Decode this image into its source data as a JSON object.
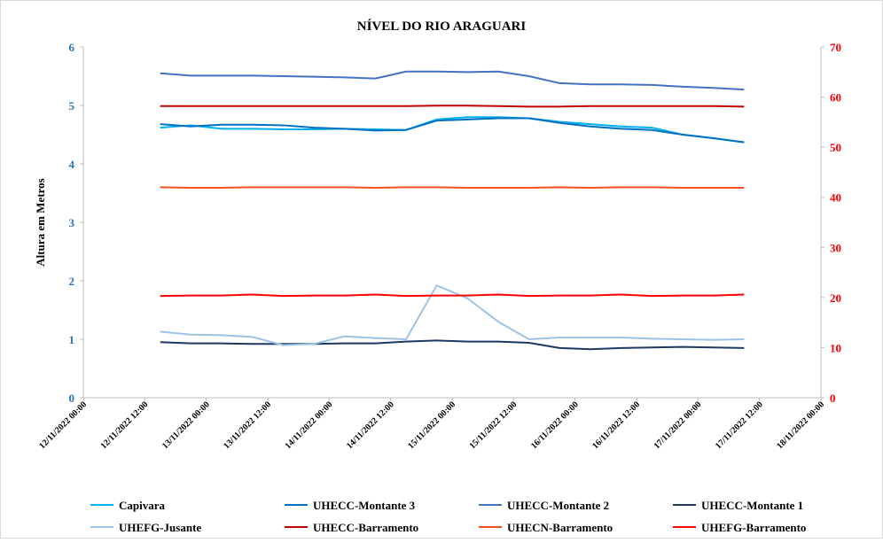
{
  "chart_data": {
    "type": "line",
    "title": "NÍVEL DO RIO ARAGUARI",
    "y_label": "Altura  em Metros",
    "x": [
      "12/11/2022 15:00",
      "12/11/2022 21:00",
      "13/11/2022 03:00",
      "13/11/2022 09:00",
      "13/11/2022 15:00",
      "13/11/2022 21:00",
      "14/11/2022 03:00",
      "14/11/2022 09:00",
      "14/11/2022 15:00",
      "14/11/2022 21:00",
      "15/11/2022 03:00",
      "15/11/2022 09:00",
      "15/11/2022 15:00",
      "15/11/2022 21:00",
      "16/11/2022 03:00",
      "16/11/2022 09:00",
      "16/11/2022 15:00",
      "16/11/2022 21:00",
      "17/11/2022 03:00",
      "17/11/2022 09:00"
    ],
    "xlim": [
      "12/11/2022 00:00",
      "18/11/2022 00:00"
    ],
    "xticks": [
      "12/11/2022 00:00",
      "12/11/2022 12:00",
      "13/11/2022 00:00",
      "13/11/2022 12:00",
      "14/11/2022 00:00",
      "14/11/2022 12:00",
      "15/11/2022 00:00",
      "15/11/2022 12:00",
      "16/11/2022 00:00",
      "16/11/2022 12:00",
      "17/11/2022 00:00",
      "17/11/2022 12:00",
      "18/11/2022 00:00"
    ],
    "ylim": [
      0,
      6
    ],
    "yticks": [
      0,
      1,
      2,
      3,
      4,
      5,
      6
    ],
    "y2lim": [
      0,
      70
    ],
    "y2ticks": [
      0,
      10,
      20,
      30,
      40,
      50,
      60,
      70
    ],
    "series": [
      {
        "name": "Capivara",
        "color": "#00b0f0",
        "values": [
          4.62,
          4.66,
          4.6,
          4.6,
          4.59,
          4.59,
          4.6,
          4.59,
          4.58,
          4.76,
          4.8,
          4.8,
          4.78,
          4.72,
          4.68,
          4.64,
          4.62,
          4.5,
          4.44,
          4.37
        ]
      },
      {
        "name": "UHECC-Montante 3",
        "color": "#0070c0",
        "values": [
          4.68,
          4.64,
          4.67,
          4.67,
          4.66,
          4.62,
          4.6,
          4.57,
          4.58,
          4.74,
          4.76,
          4.78,
          4.78,
          4.7,
          4.64,
          4.6,
          4.58,
          4.5,
          4.44,
          4.37
        ]
      },
      {
        "name": "UHECC-Montante 2",
        "color": "#4472c4",
        "values": [
          5.55,
          5.51,
          5.51,
          5.51,
          5.5,
          5.49,
          5.48,
          5.46,
          5.58,
          5.58,
          5.57,
          5.58,
          5.5,
          5.38,
          5.36,
          5.36,
          5.35,
          5.32,
          5.3,
          5.27
        ]
      },
      {
        "name": "UHECC-Montante 1",
        "color": "#1f3864",
        "values": [
          0.95,
          0.93,
          0.93,
          0.92,
          0.92,
          0.92,
          0.93,
          0.93,
          0.96,
          0.98,
          0.96,
          0.96,
          0.94,
          0.85,
          0.83,
          0.85,
          0.86,
          0.87,
          0.86,
          0.85
        ]
      },
      {
        "name": "UHEFG-Jusante",
        "color": "#9dc3e6",
        "values": [
          1.13,
          1.08,
          1.07,
          1.04,
          0.9,
          0.92,
          1.05,
          1.02,
          1.0,
          1.92,
          1.7,
          1.3,
          1.0,
          1.03,
          1.03,
          1.03,
          1.01,
          1.0,
          0.99,
          1.0
        ]
      },
      {
        "name": "UHECC-Barramento",
        "color": "#c00000",
        "axis": "y2",
        "values": [
          58.2,
          58.2,
          58.2,
          58.2,
          58.2,
          58.2,
          58.2,
          58.2,
          58.2,
          58.3,
          58.3,
          58.2,
          58.1,
          58.1,
          58.2,
          58.2,
          58.2,
          58.2,
          58.2,
          58.1
        ]
      },
      {
        "name": "UHECN-Barramento",
        "color": "#f4501e",
        "axis": "y2",
        "values": [
          42.0,
          41.9,
          41.9,
          42.0,
          42.0,
          42.0,
          42.0,
          41.9,
          42.0,
          42.0,
          41.9,
          41.9,
          41.9,
          42.0,
          41.9,
          42.0,
          42.0,
          41.9,
          41.9,
          41.9
        ]
      },
      {
        "name": "UHEFG-Barramento",
        "color": "#ff0000",
        "axis": "y2",
        "values": [
          20.3,
          20.4,
          20.4,
          20.6,
          20.3,
          20.4,
          20.4,
          20.6,
          20.3,
          20.4,
          20.4,
          20.6,
          20.3,
          20.4,
          20.4,
          20.6,
          20.3,
          20.4,
          20.4,
          20.6
        ]
      }
    ]
  }
}
